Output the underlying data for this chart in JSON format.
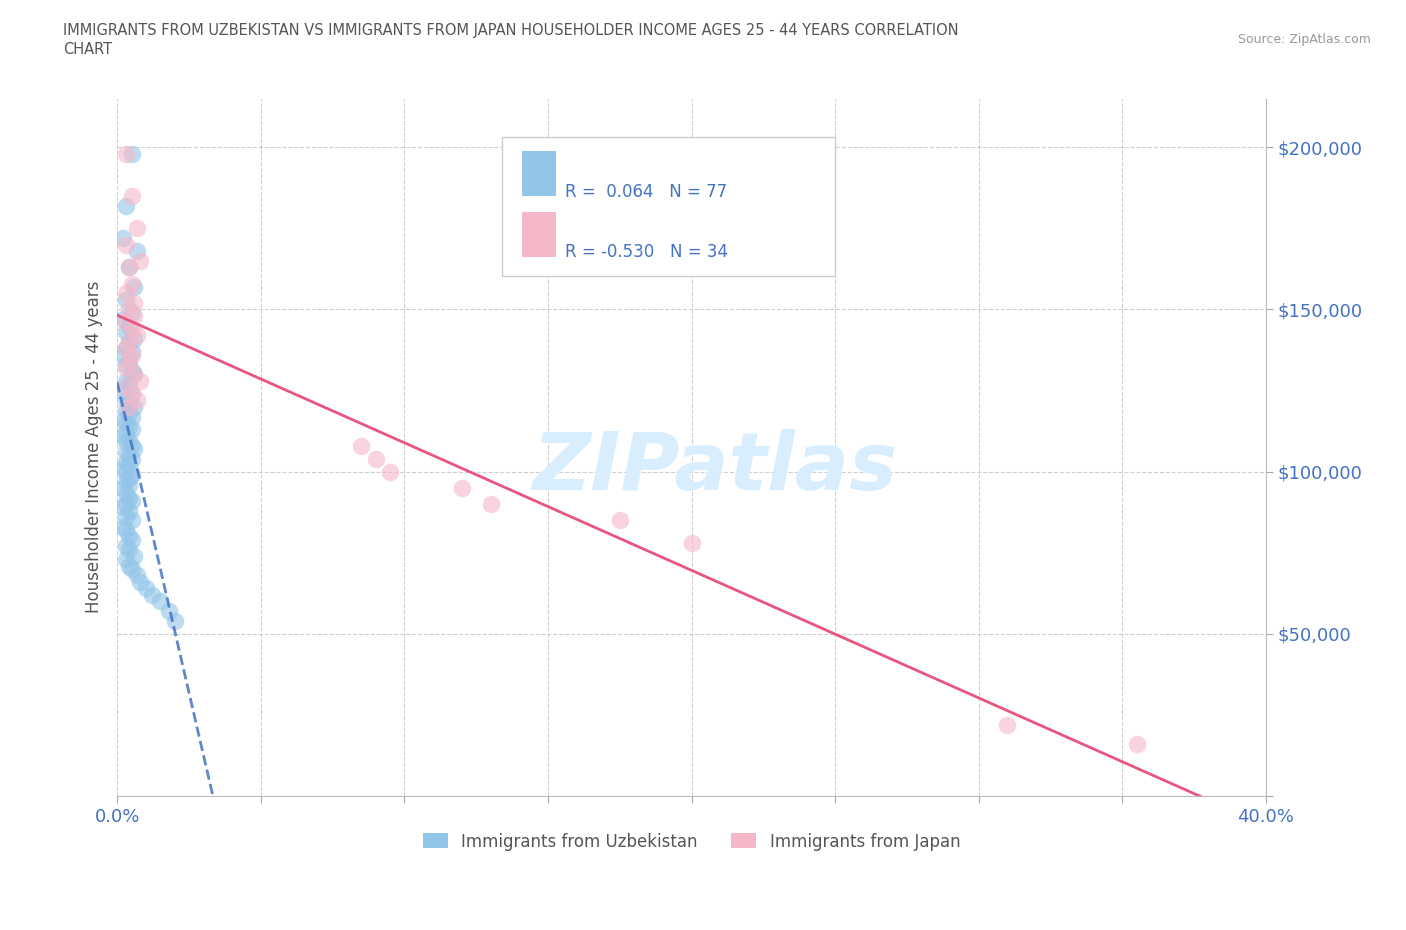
{
  "title_line1": "IMMIGRANTS FROM UZBEKISTAN VS IMMIGRANTS FROM JAPAN HOUSEHOLDER INCOME AGES 25 - 44 YEARS CORRELATION",
  "title_line2": "CHART",
  "source_text": "Source: ZipAtlas.com",
  "ylabel": "Householder Income Ages 25 - 44 years",
  "xlim": [
    0.0,
    0.4
  ],
  "ylim": [
    0,
    215000
  ],
  "x_ticks": [
    0.0,
    0.05,
    0.1,
    0.15,
    0.2,
    0.25,
    0.3,
    0.35,
    0.4
  ],
  "y_ticks": [
    0,
    50000,
    100000,
    150000,
    200000
  ],
  "uzbekistan_color": "#92C5E8",
  "japan_color": "#F5B8C8",
  "uzbekistan_line_color": "#4472C4",
  "japan_line_color": "#E85580",
  "uzbekistan_r": 0.064,
  "uzbekistan_n": 77,
  "japan_r": -0.53,
  "japan_n": 34,
  "uzbekistan_x": [
    0.005,
    0.003,
    0.002,
    0.007,
    0.004,
    0.006,
    0.003,
    0.005,
    0.002,
    0.004,
    0.003,
    0.006,
    0.004,
    0.003,
    0.005,
    0.002,
    0.004,
    0.003,
    0.005,
    0.006,
    0.003,
    0.004,
    0.002,
    0.005,
    0.003,
    0.004,
    0.006,
    0.003,
    0.004,
    0.005,
    0.002,
    0.003,
    0.004,
    0.005,
    0.003,
    0.002,
    0.004,
    0.003,
    0.005,
    0.006,
    0.003,
    0.004,
    0.005,
    0.003,
    0.004,
    0.002,
    0.003,
    0.005,
    0.004,
    0.003,
    0.004,
    0.002,
    0.003,
    0.004,
    0.005,
    0.003,
    0.002,
    0.004,
    0.003,
    0.005,
    0.002,
    0.003,
    0.004,
    0.005,
    0.003,
    0.004,
    0.006,
    0.003,
    0.004,
    0.005,
    0.007,
    0.008,
    0.01,
    0.012,
    0.015,
    0.018,
    0.02
  ],
  "uzbekistan_y": [
    198000,
    182000,
    172000,
    168000,
    163000,
    157000,
    153000,
    149000,
    147000,
    145000,
    143000,
    141000,
    140000,
    138000,
    137000,
    136000,
    134000,
    133000,
    131000,
    130000,
    128000,
    127000,
    125000,
    124000,
    122000,
    121000,
    120000,
    119000,
    118000,
    117000,
    116000,
    115000,
    114000,
    113000,
    112000,
    111000,
    110000,
    109000,
    108000,
    107000,
    106000,
    105000,
    104000,
    103000,
    102000,
    101000,
    100000,
    99000,
    98000,
    97000,
    96000,
    95000,
    93000,
    92000,
    91000,
    90000,
    89000,
    88000,
    86000,
    85000,
    83000,
    82000,
    80000,
    79000,
    77000,
    76000,
    74000,
    73000,
    71000,
    70000,
    68000,
    66000,
    64000,
    62000,
    60000,
    57000,
    54000
  ],
  "japan_x": [
    0.003,
    0.005,
    0.007,
    0.003,
    0.008,
    0.004,
    0.005,
    0.003,
    0.006,
    0.004,
    0.006,
    0.003,
    0.005,
    0.007,
    0.004,
    0.003,
    0.005,
    0.004,
    0.003,
    0.006,
    0.008,
    0.003,
    0.005,
    0.007,
    0.004,
    0.085,
    0.09,
    0.095,
    0.12,
    0.13,
    0.175,
    0.2,
    0.31,
    0.355
  ],
  "japan_y": [
    198000,
    185000,
    175000,
    170000,
    165000,
    163000,
    158000,
    155000,
    152000,
    150000,
    148000,
    146000,
    144000,
    142000,
    140000,
    138000,
    136000,
    134000,
    132000,
    130000,
    128000,
    126000,
    124000,
    122000,
    120000,
    108000,
    104000,
    100000,
    95000,
    90000,
    85000,
    78000,
    22000,
    16000
  ],
  "watermark": "ZIPatlas",
  "legend_r_color": "#4472C4",
  "legend_label_color": "#333333"
}
